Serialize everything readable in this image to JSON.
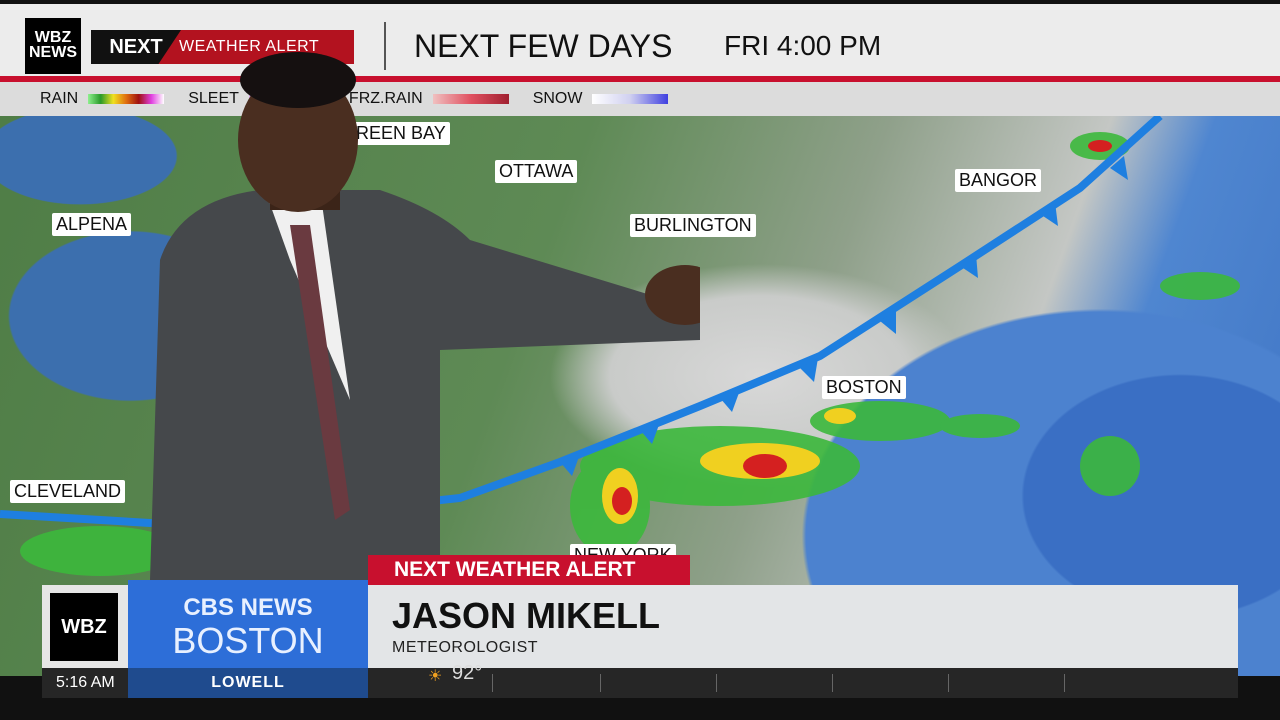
{
  "header": {
    "station_logo": "WBZ NEWS",
    "alert_brand": "NEXT",
    "alert_label": "WEATHER ALERT",
    "title": "NEXT FEW DAYS",
    "time": "FRI 4:00 PM"
  },
  "legend": [
    {
      "label": "RAIN"
    },
    {
      "label": "SLEET"
    },
    {
      "label": "FRZ.RAIN"
    },
    {
      "label": "SNOW"
    }
  ],
  "map": {
    "cities": [
      "GREEN BAY",
      "OTTAWA",
      "ALPENA",
      "BURLINGTON",
      "BANGOR",
      "BOSTON",
      "CLEVELAND",
      "NEW YORK"
    ],
    "front_color": "#1e7fe0"
  },
  "lower_third": {
    "alert": "NEXT WEATHER ALERT",
    "name": "JASON MIKELL",
    "role": "METEOROLOGIST",
    "station": "WBZ",
    "network": "CBS NEWS",
    "city": "BOSTON"
  },
  "ticker": {
    "time": "5:16 AM",
    "location": "LOWELL",
    "temp": "92°",
    "weather_icon": "sun-icon"
  },
  "colors": {
    "alert_red": "#c8102e",
    "cbs_blue": "#2d6ed8"
  }
}
